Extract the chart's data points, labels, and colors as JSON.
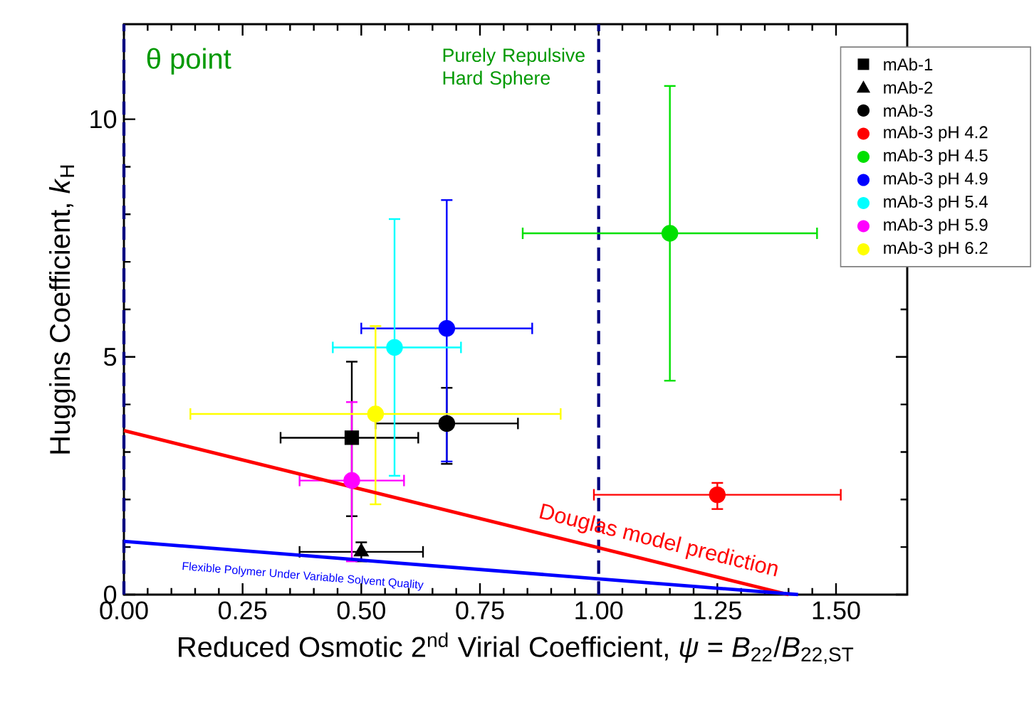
{
  "chart_data": {
    "type": "scatter",
    "xlabel": "Reduced Osmotic 2$^{nd}$ Virial Coefficient,  *ψ* = *B*$_{22}$/*B*$_{22,ST}$",
    "ylabel": "Huggins Coefficient, *k*$_{H}$",
    "xlim": [
      0,
      1.65
    ],
    "ylim": [
      0,
      12
    ],
    "xticks": [
      {
        "value": 0,
        "label": "0.00"
      },
      {
        "value": 0.25,
        "label": "0.25"
      },
      {
        "value": 0.5,
        "label": "0.50"
      },
      {
        "value": 0.75,
        "label": "0.75"
      },
      {
        "value": 1,
        "label": "1.00"
      },
      {
        "value": 1.25,
        "label": "1.25"
      },
      {
        "value": 1.5,
        "label": "1.50"
      }
    ],
    "yticks": [
      0,
      5,
      10
    ],
    "grid": false,
    "legend": "top right",
    "series": [
      {
        "name": "mAb-1",
        "color": "#000000",
        "marker": "square",
        "x": [
          0.48
        ],
        "values": [
          3.3
        ],
        "errors": [
          [
            1.65,
            4.9
          ]
        ],
        "xerrors": [
          [
            0.33,
            0.62
          ]
        ]
      },
      {
        "name": "mAb-2",
        "color": "#000000",
        "marker": "triangle",
        "x": [
          0.5
        ],
        "values": [
          0.9
        ],
        "errors": [
          [
            0.7,
            1.1
          ]
        ],
        "xerrors": [
          [
            0.37,
            0.63
          ]
        ]
      },
      {
        "name": "mAb-3",
        "color": "#000000",
        "marker": "circle",
        "x": [
          0.68
        ],
        "values": [
          3.6
        ],
        "errors": [
          [
            2.75,
            4.35
          ]
        ],
        "xerrors": [
          [
            0.53,
            0.83
          ]
        ]
      },
      {
        "name": "mAb-3 pH 4.2",
        "color": "#ff0000",
        "marker": "circle",
        "x": [
          1.25
        ],
        "values": [
          2.1
        ],
        "errors": [
          [
            1.8,
            2.35
          ]
        ],
        "xerrors": [
          [
            0.99,
            1.51
          ]
        ]
      },
      {
        "name": "mAb-3 pH 4.5",
        "color": "#00e000",
        "marker": "circle",
        "x": [
          1.15
        ],
        "values": [
          7.6
        ],
        "errors": [
          [
            4.5,
            10.7
          ]
        ],
        "xerrors": [
          [
            0.84,
            1.46
          ]
        ]
      },
      {
        "name": "mAb-3 pH 4.9",
        "color": "#0000ff",
        "marker": "circle",
        "x": [
          0.68
        ],
        "values": [
          5.6
        ],
        "errors": [
          [
            2.8,
            8.3
          ]
        ],
        "xerrors": [
          [
            0.5,
            0.86
          ]
        ]
      },
      {
        "name": "mAb-3 pH 5.4",
        "color": "#00ffff",
        "marker": "circle",
        "x": [
          0.57
        ],
        "values": [
          5.2
        ],
        "errors": [
          [
            2.5,
            7.9
          ]
        ],
        "xerrors": [
          [
            0.44,
            0.71
          ]
        ]
      },
      {
        "name": "mAb-3 pH 5.9",
        "color": "#ff00ff",
        "marker": "circle",
        "x": [
          0.48
        ],
        "values": [
          2.4
        ],
        "errors": [
          [
            0.7,
            4.05
          ]
        ],
        "xerrors": [
          [
            0.37,
            0.59
          ]
        ]
      },
      {
        "name": "mAb-3 pH 6.2",
        "color": "#ffff00",
        "marker": "circle",
        "x": [
          0.53
        ],
        "values": [
          3.8
        ],
        "errors": [
          [
            1.9,
            5.65
          ]
        ],
        "xerrors": [
          [
            0.14,
            0.92
          ]
        ]
      },
      {
        "type": "line",
        "color": "#ff0000",
        "x": [
          0,
          1.4
        ],
        "values": [
          3.45,
          0
        ]
      },
      {
        "type": "line",
        "color": "#0000ff",
        "x": [
          0,
          1.42
        ],
        "values": [
          1.12,
          0
        ]
      }
    ],
    "ref_lines": [
      {
        "axis": "x",
        "value": 0,
        "label": "θ point",
        "color": "#000080",
        "line_style": "dashed"
      },
      {
        "axis": "x",
        "value": 1,
        "label": "Purely Repulsive Hard Sphere",
        "color": "#000080",
        "line_style": "dashed"
      }
    ],
    "annotations": [
      "Douglas model prediction",
      "Flexible Polymer Under Variable Solvent Quality"
    ]
  }
}
